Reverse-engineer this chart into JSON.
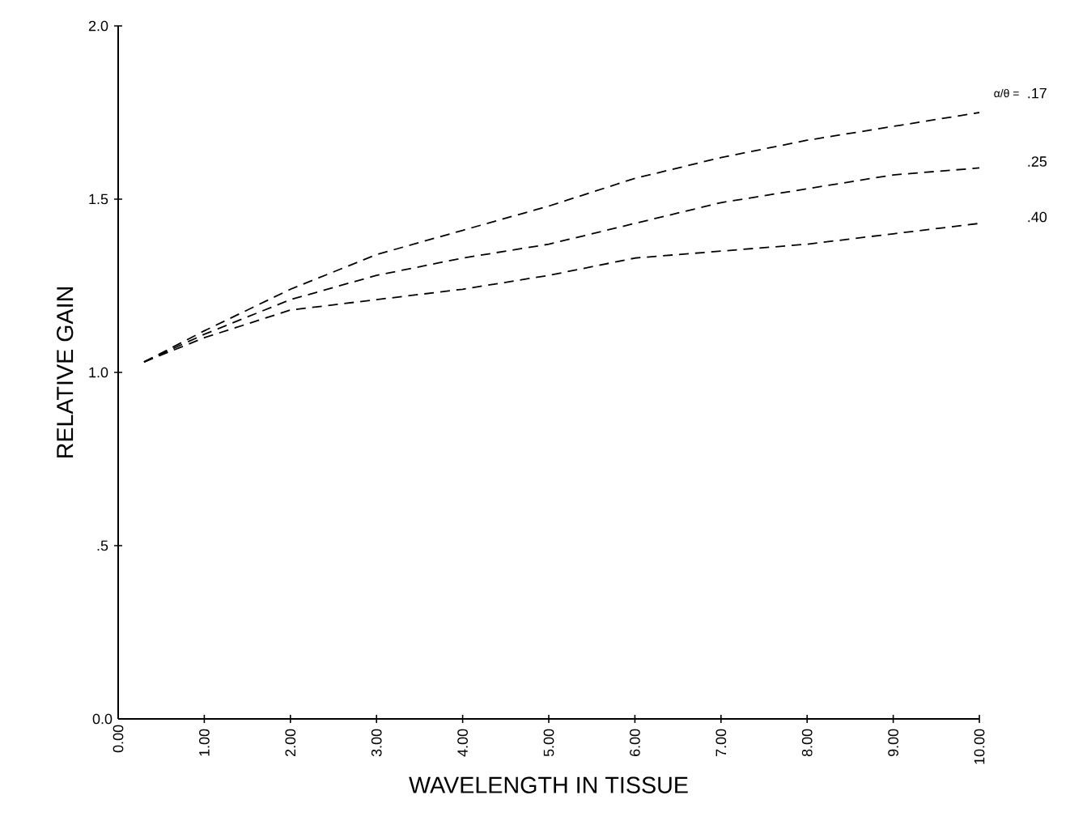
{
  "chart_data": {
    "type": "line",
    "xlabel": "WAVELENGTH IN TISSUE",
    "ylabel": "RELATIVE GAIN",
    "annotations": [
      "α/θ ="
    ],
    "x": [
      0.3,
      1,
      2,
      3,
      4,
      5,
      6,
      7,
      8,
      9,
      10
    ],
    "series": [
      {
        "name": ".17",
        "color": "#000000",
        "values": [
          1.03,
          1.12,
          1.24,
          1.34,
          1.41,
          1.48,
          1.56,
          1.62,
          1.67,
          1.71,
          1.75
        ]
      },
      {
        "name": ".25",
        "color": "#000000",
        "values": [
          1.03,
          1.11,
          1.21,
          1.28,
          1.33,
          1.37,
          1.43,
          1.49,
          1.53,
          1.57,
          1.59
        ]
      },
      {
        "name": ".40",
        "color": "#000000",
        "values": [
          1.03,
          1.1,
          1.18,
          1.21,
          1.24,
          1.28,
          1.33,
          1.35,
          1.37,
          1.4,
          1.43
        ]
      }
    ],
    "xlim": [
      0,
      10
    ],
    "ylim": [
      0,
      2
    ],
    "xticks": [
      {
        "value": 0,
        "label": "0.00"
      },
      {
        "value": 1,
        "label": "1.00"
      },
      {
        "value": 2,
        "label": "2.00"
      },
      {
        "value": 3,
        "label": "3.00"
      },
      {
        "value": 4,
        "label": "4.00"
      },
      {
        "value": 5,
        "label": "5.00"
      },
      {
        "value": 6,
        "label": "6.00"
      },
      {
        "value": 7,
        "label": "7.00"
      },
      {
        "value": 8,
        "label": "8.00"
      },
      {
        "value": 9,
        "label": "9.00"
      },
      {
        "value": 10,
        "label": "10.00"
      }
    ],
    "yticks": [
      {
        "value": 0,
        "label": "0.0"
      },
      {
        "value": 0.5,
        "label": ".5"
      },
      {
        "value": 1,
        "label": "1.0"
      },
      {
        "value": 1.5,
        "label": "1.5"
      },
      {
        "value": 2,
        "label": "2.0"
      }
    ],
    "grid": false,
    "marker": "none",
    "line_style": "dashed"
  }
}
